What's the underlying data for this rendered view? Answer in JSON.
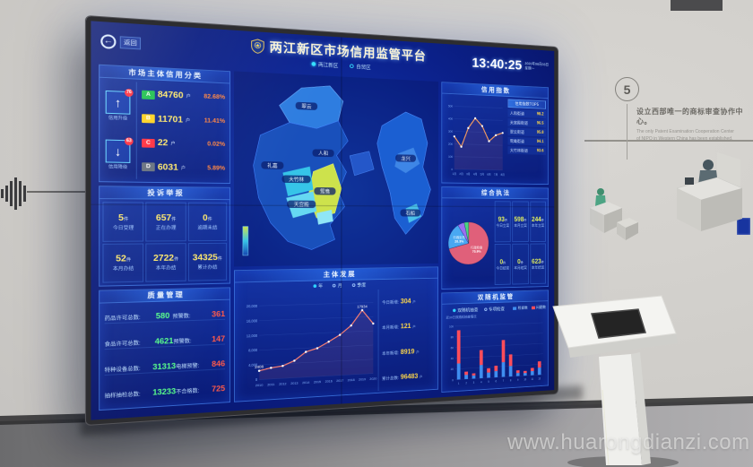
{
  "wall": {
    "step_number": "5",
    "note_zh": "设立西部唯一的商标审查协作中心。",
    "note_en": "The only Patent Examination Cooperation Center of NIPO in Western China has been established.",
    "watermark": "www.huarongdianzi.com"
  },
  "dashboard": {
    "back_label": "返回",
    "title": "两江新区市场信用监管平台",
    "tabs": [
      {
        "label": "两江新区"
      },
      {
        "label": "自贸区"
      }
    ],
    "clock": {
      "time": "13:40:25",
      "date": "2020年08月03日",
      "weekday": "星期一"
    },
    "credit": {
      "header": "市场主体信用分类",
      "up": {
        "label": "信用升级",
        "badge": "76",
        "icon": "arrow-up"
      },
      "down": {
        "label": "信用降级",
        "badge": "63",
        "icon": "arrow-down"
      },
      "rows": [
        {
          "grade": "A",
          "value": "84760",
          "unit": "户",
          "pct": "82.68%",
          "color": "#1ec04e"
        },
        {
          "grade": "B",
          "value": "11701",
          "unit": "户",
          "pct": "11.41%",
          "color": "#ffd21f"
        },
        {
          "grade": "C",
          "value": "22",
          "unit": "户",
          "pct": "0.02%",
          "color": "#ff2e3e"
        },
        {
          "grade": "D",
          "value": "6031",
          "unit": "户",
          "pct": "5.89%",
          "color": "#66707e"
        }
      ]
    },
    "complaints": {
      "header": "投诉举报",
      "cells": [
        {
          "value": "5",
          "unit": "件",
          "label": "今日受理"
        },
        {
          "value": "657",
          "unit": "件",
          "label": "正在办理"
        },
        {
          "value": "0",
          "unit": "件",
          "label": "逾期未结"
        },
        {
          "value": "52",
          "unit": "件",
          "label": "本月办结"
        },
        {
          "value": "2722",
          "unit": "件",
          "label": "本年办结"
        },
        {
          "value": "34325",
          "unit": "件",
          "label": "累计办结"
        }
      ]
    },
    "quality": {
      "header": "质量管理",
      "rows": [
        {
          "label": "药品许可总数:",
          "value": "580",
          "warn_label": "预警数:",
          "warn_value": "361"
        },
        {
          "label": "食品许可总数:",
          "value": "4621",
          "warn_label": "预警数:",
          "warn_value": "147"
        },
        {
          "label": "特种设备总数:",
          "value": "31313",
          "warn_label": "电梯预警:",
          "warn_value": "846"
        },
        {
          "label": "抽样抽检总数:",
          "value": "13233",
          "warn_label": "不合格数:",
          "warn_value": "725"
        }
      ]
    },
    "map": {
      "labels": [
        "翠云",
        "人和",
        "鸳鸯",
        "大竹林",
        "天宫殿",
        "礼嘉",
        "龙兴",
        "石船"
      ]
    },
    "development": {
      "header": "主体发展",
      "modes": [
        "年",
        "月",
        "季度"
      ],
      "stats": [
        {
          "label": "今日新增:",
          "value": "304",
          "unit": "户"
        },
        {
          "label": "本月新增:",
          "value": "121",
          "unit": "户"
        },
        {
          "label": "本年新增:",
          "value": "8919",
          "unit": "户"
        },
        {
          "label": "累计总数:",
          "value": "96483",
          "unit": "户"
        }
      ]
    },
    "credit_index": {
      "header": "信用指数",
      "list_title": "信用指数TOP5",
      "list": [
        {
          "name": "人和街道",
          "score": "98.2"
        },
        {
          "name": "天宫殿街道",
          "score": "96.5"
        },
        {
          "name": "翠云街道",
          "score": "95.8"
        },
        {
          "name": "鸳鸯街道",
          "score": "94.1"
        },
        {
          "name": "大竹林街道",
          "score": "93.6"
        }
      ]
    },
    "enforcement": {
      "header": "综合执法",
      "cells": [
        {
          "value": "93",
          "unit": "件",
          "label": "今日立案"
        },
        {
          "value": "598",
          "unit": "件",
          "label": "本月立案"
        },
        {
          "value": "244",
          "unit": "件",
          "label": "本年立案"
        },
        {
          "value": "0",
          "unit": "件",
          "label": "今日结案"
        },
        {
          "value": "0",
          "unit": "件",
          "label": "本月结案"
        },
        {
          "value": "623",
          "unit": "件",
          "label": "本年结案"
        }
      ]
    },
    "random_inspection": {
      "header": "双随机监管",
      "modes": [
        "双随机抽查",
        "专项检查"
      ],
      "note": "近30日双随机抽查情况",
      "legend": [
        {
          "label": "检查数",
          "color": "#3f8ef0"
        },
        {
          "label": "问题数",
          "color": "#ff4d5a"
        }
      ]
    }
  },
  "chart_data": [
    {
      "id": "entity-development",
      "type": "line",
      "title": "主体发展",
      "x": [
        "2010",
        "2011",
        "2012",
        "2013",
        "2014",
        "2015",
        "2016",
        "2017",
        "2018",
        "2019",
        "2020"
      ],
      "values": [
        2408,
        3050,
        3420,
        4680,
        6950,
        7820,
        9480,
        11260,
        13750,
        17934,
        14060
      ],
      "ylim": [
        0,
        20000
      ],
      "ytick_step": 4000,
      "point_labels": {
        "0": "2408",
        "9": "17934"
      },
      "line_color": "#ff8273",
      "legend": [
        "年",
        "月",
        "季度"
      ],
      "grid": true
    },
    {
      "id": "credit-index-trend",
      "type": "line",
      "x": [
        "1月",
        "2月",
        "3月",
        "4月",
        "5月",
        "6月",
        "7月",
        "8月"
      ],
      "values": [
        260,
        180,
        330,
        410,
        350,
        230,
        280,
        300
      ],
      "ylim": [
        0,
        500
      ],
      "ytick_step": 100,
      "line_color": "#ffa05c",
      "grid": true
    },
    {
      "id": "enforcement-pie",
      "type": "pie",
      "slices": [
        {
          "label": "行政检查",
          "pct": 70.9,
          "color": "#e0607a"
        },
        {
          "label": "行政处罚",
          "pct": 20.3,
          "color": "#49a8f2"
        },
        {
          "label": "监督抽查",
          "pct": 5.3,
          "color": "#9b6ff0"
        },
        {
          "label": "其他",
          "pct": 3.5,
          "color": "#49d67f"
        }
      ]
    },
    {
      "id": "random-inspection-bars",
      "type": "bar",
      "stacked": true,
      "categories": [
        "1",
        "2",
        "3",
        "4",
        "5",
        "6",
        "7",
        "8",
        "9",
        "10",
        "11",
        "12"
      ],
      "series": [
        {
          "name": "检查数",
          "color": "#3f8ef0",
          "values": [
            30,
            8,
            6,
            25,
            10,
            12,
            28,
            20,
            6,
            5,
            8,
            14
          ]
        },
        {
          "name": "问题数",
          "color": "#ff4d5a",
          "values": [
            62,
            6,
            4,
            28,
            8,
            10,
            42,
            22,
            5,
            4,
            6,
            12
          ]
        }
      ],
      "ylim": [
        0,
        100
      ],
      "ytick_step": 20,
      "grid": true
    }
  ]
}
